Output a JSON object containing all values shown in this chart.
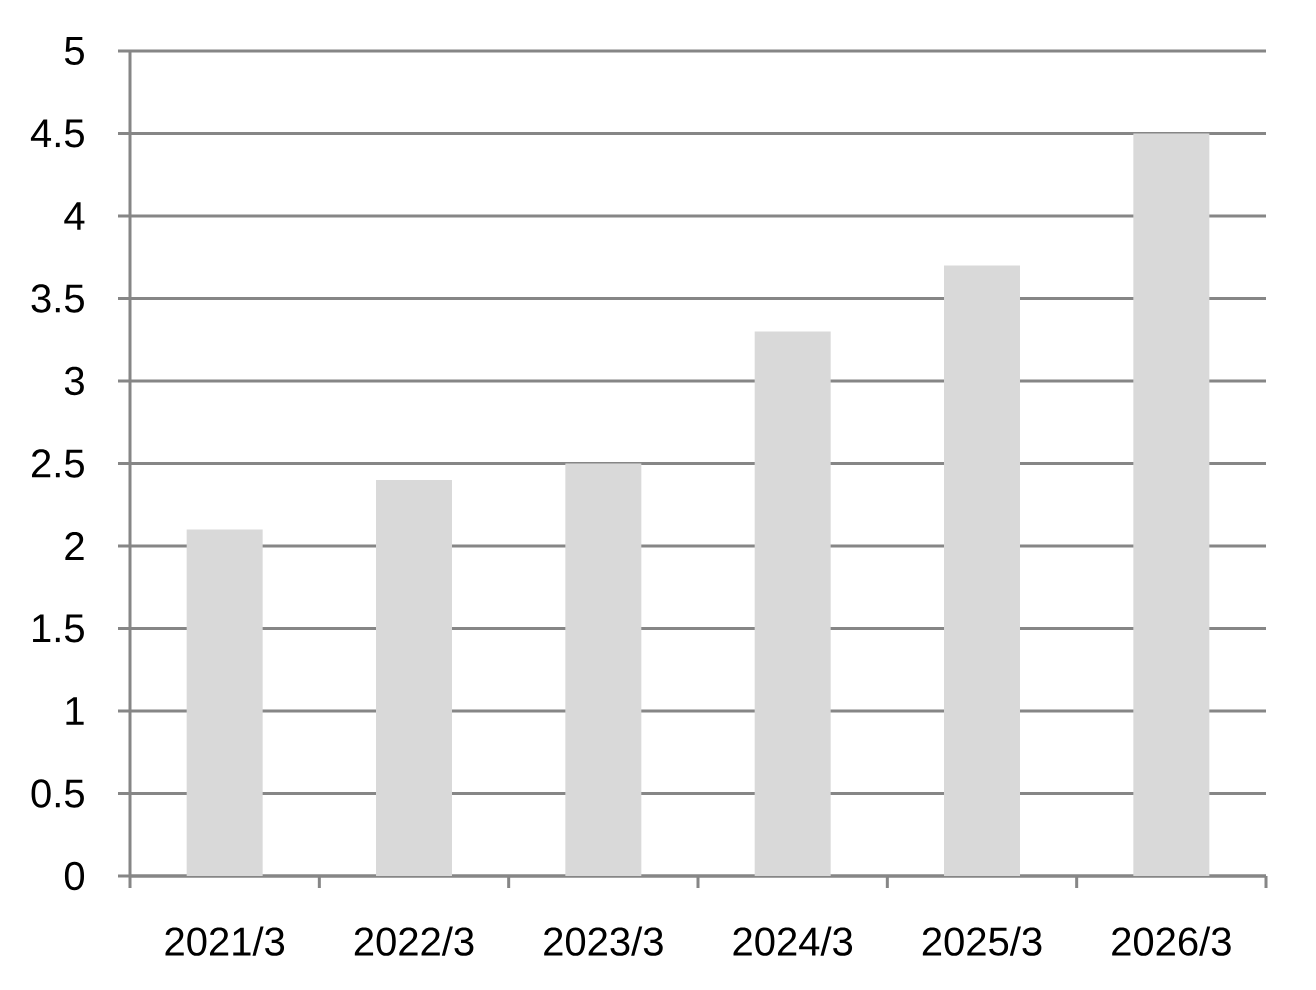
{
  "chart_data": {
    "type": "bar",
    "categories": [
      "2021/3",
      "2022/3",
      "2023/3",
      "2024/3",
      "2025/3",
      "2026/3"
    ],
    "values": [
      2.1,
      2.4,
      2.5,
      3.3,
      3.7,
      4.5
    ],
    "color": "#d9d9d9",
    "ylim": [
      0,
      5
    ],
    "yticks": [
      0,
      0.5,
      1,
      1.5,
      2,
      2.5,
      3,
      3.5,
      4,
      4.5,
      5
    ],
    "grid": "y"
  }
}
